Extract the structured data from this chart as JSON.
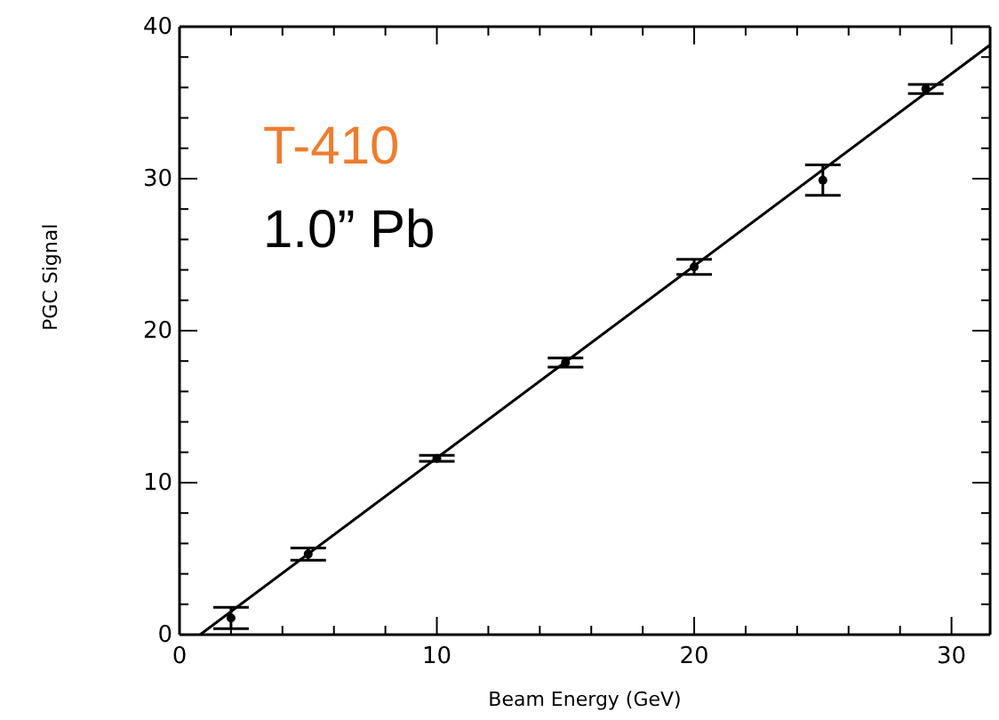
{
  "chart_data": {
    "type": "scatter",
    "xlabel": "Beam Energy (GeV)",
    "ylabel": "PGC Signal",
    "annotations": [
      "T-410",
      "1.0” Pb"
    ],
    "xlim": [
      0,
      31.5
    ],
    "ylim": [
      0,
      40
    ],
    "xticks": [
      0,
      {
        "value": 2,
        "label": null
      },
      {
        "value": 4,
        "label": null
      },
      {
        "value": 6,
        "label": null
      },
      {
        "value": 8,
        "label": null
      },
      10,
      {
        "value": 12,
        "label": null
      },
      {
        "value": 14,
        "label": null
      },
      {
        "value": 16,
        "label": null
      },
      {
        "value": 18,
        "label": null
      },
      20,
      {
        "value": 22,
        "label": null
      },
      {
        "value": 24,
        "label": null
      },
      {
        "value": 26,
        "label": null
      },
      {
        "value": 28,
        "label": null
      },
      30
    ],
    "yticks": [
      0,
      {
        "value": 2,
        "label": null
      },
      {
        "value": 4,
        "label": null
      },
      {
        "value": 6,
        "label": null
      },
      {
        "value": 8,
        "label": null
      },
      10,
      {
        "value": 12,
        "label": null
      },
      {
        "value": 14,
        "label": null
      },
      {
        "value": 16,
        "label": null
      },
      {
        "value": 18,
        "label": null
      },
      20,
      {
        "value": 22,
        "label": null
      },
      {
        "value": 24,
        "label": null
      },
      {
        "value": 26,
        "label": null
      },
      {
        "value": 28,
        "label": null
      },
      30,
      {
        "value": 32,
        "label": null
      },
      {
        "value": 34,
        "label": null
      },
      {
        "value": 36,
        "label": null
      },
      {
        "value": 38,
        "label": null
      },
      40
    ],
    "legend": false,
    "marker": "circle",
    "series": [
      {
        "color": "#000000",
        "x": [
          2,
          5,
          10,
          15,
          20,
          25,
          29
        ],
        "values": [
          1.1,
          5.3,
          11.6,
          17.9,
          24.2,
          29.9,
          35.9
        ],
        "errors": [
          0.7,
          0.4,
          0.2,
          0.3,
          0.5,
          1.0,
          0.3
        ]
      },
      {
        "type": "line",
        "color": "#000000",
        "marker": "none",
        "x": [
          0.8,
          31.5
        ],
        "values": [
          0,
          38.8
        ]
      }
    ]
  }
}
